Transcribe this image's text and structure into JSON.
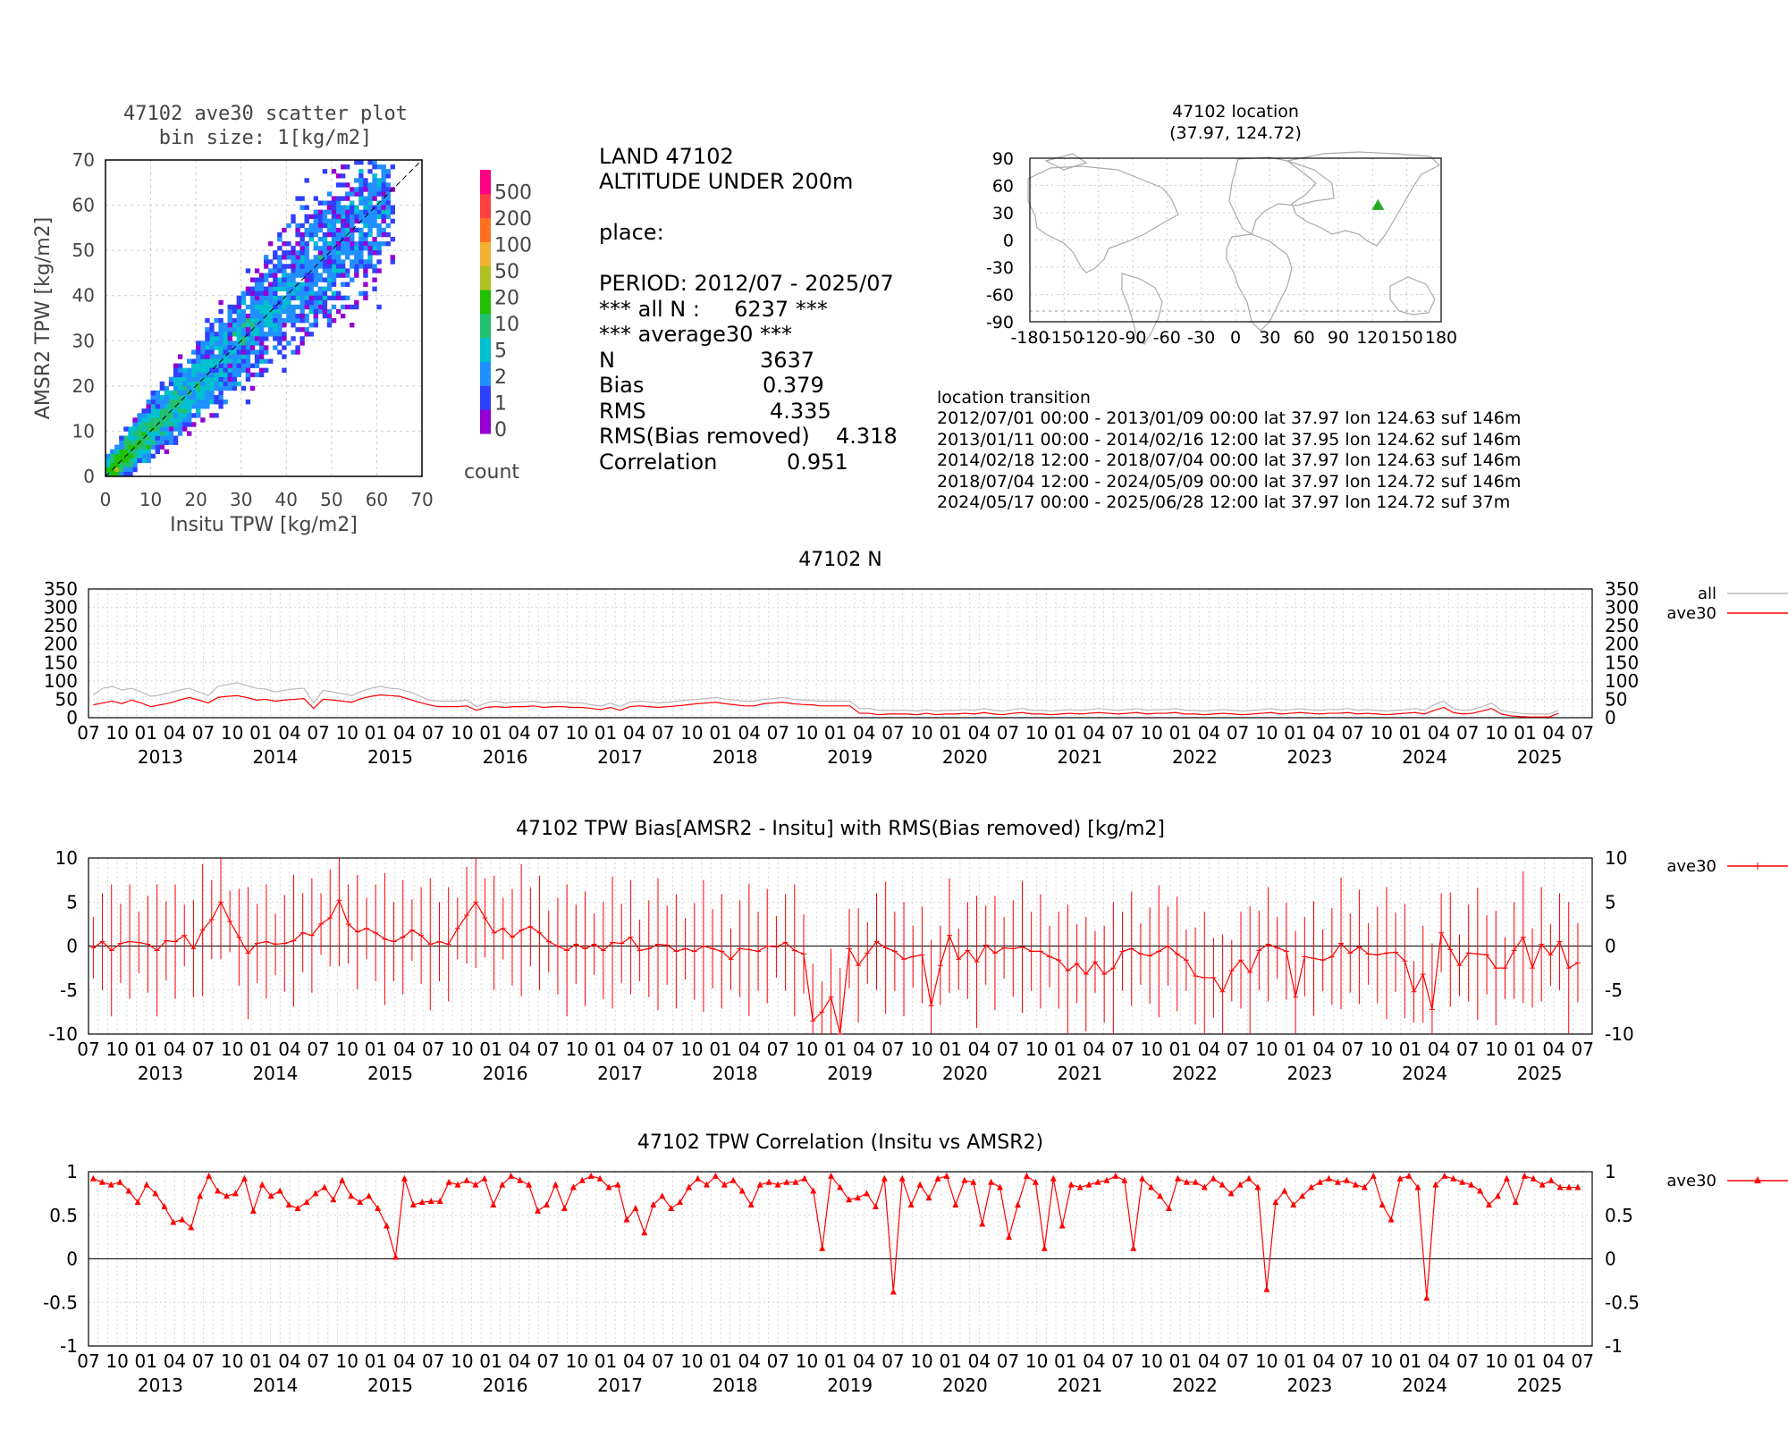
{
  "scatter": {
    "title_line1": "47102 ave30 scatter plot",
    "title_line2": "bin size: 1[kg/m2]",
    "xlabel": "Insitu TPW [kg/m2]",
    "ylabel": "AMSR2 TPW [kg/m2]",
    "ticks": [
      "0",
      "10",
      "20",
      "30",
      "40",
      "50",
      "60",
      "70"
    ],
    "colorbar_label": "count",
    "colorbar_levels": [
      "0",
      "1",
      "2",
      "5",
      "10",
      "20",
      "50",
      "100",
      "200",
      "500"
    ],
    "colorbar_colors": [
      "#9400d3",
      "#3040ff",
      "#2090ff",
      "#00c0d0",
      "#20c070",
      "#20c000",
      "#b0c020",
      "#f0b030",
      "#ff7020",
      "#ff4040",
      "#ff0080"
    ]
  },
  "stats": {
    "line1": "LAND 47102",
    "line2": "ALTITUDE UNDER 200m",
    "place_label": "place:",
    "period": "PERIOD: 2012/07 - 2025/07",
    "all_n": "*** all N :     6237 ***",
    "avg_header": "*** average30 ***",
    "rows": [
      {
        "label": "N",
        "value": "3637"
      },
      {
        "label": "Bias",
        "value": "0.379"
      },
      {
        "label": "RMS",
        "value": "4.335"
      },
      {
        "label": "RMS(Bias removed)",
        "value": "4.318"
      },
      {
        "label": "Correlation",
        "value": "0.951"
      }
    ]
  },
  "location": {
    "title_line1": "47102 location",
    "title_line2": "(37.97, 124.72)",
    "lat": 37.97,
    "lon": 124.72,
    "marker_color": "#22aa22",
    "yticks": [
      "90",
      "60",
      "30",
      "0",
      "-30",
      "-60",
      "-90"
    ],
    "xticks": [
      "-180",
      "-150",
      "-120",
      "-90",
      "-60",
      "-30",
      "0",
      "30",
      "60",
      "90",
      "120",
      "150",
      "180"
    ],
    "transition_title": "location transition",
    "transitions": [
      "2012/07/01 00:00 - 2013/01/09 00:00 lat 37.97 lon 124.63 suf 146m",
      "2013/01/11 00:00 - 2014/02/16 12:00 lat 37.95 lon 124.62 suf 146m",
      "2014/02/18 12:00 - 2018/07/04 00:00 lat 37.97 lon 124.63 suf 146m",
      "2018/07/04 12:00 - 2024/05/09 00:00 lat 37.97 lon 124.72 suf 146m",
      "2024/05/17 00:00 - 2025/06/28 12:00 lat 37.97 lon 124.72 suf 37m"
    ]
  },
  "time_axis": {
    "month_ticks": [
      "07",
      "10",
      "01",
      "04",
      "07",
      "10",
      "01",
      "04",
      "07",
      "10",
      "01",
      "04",
      "07",
      "10",
      "01",
      "04",
      "07",
      "10",
      "01",
      "04",
      "07",
      "10",
      "01",
      "04",
      "07",
      "10",
      "01",
      "04",
      "07",
      "10",
      "01",
      "04",
      "07",
      "10",
      "01",
      "04",
      "07",
      "10",
      "01",
      "04",
      "07",
      "10",
      "01",
      "04",
      "07",
      "10",
      "01",
      "04",
      "07",
      "10",
      "01",
      "04",
      "07"
    ],
    "years": [
      "2013",
      "2014",
      "2015",
      "2016",
      "2017",
      "2018",
      "2019",
      "2020",
      "2021",
      "2022",
      "2023",
      "2024",
      "2025"
    ]
  },
  "chart_data": [
    {
      "type": "scatter",
      "title": "47102 ave30 scatter plot",
      "xlabel": "Insitu TPW [kg/m2]",
      "ylabel": "AMSR2 TPW [kg/m2]",
      "xlim": [
        0,
        70
      ],
      "ylim": [
        0,
        70
      ],
      "n": 3637,
      "bias": 0.379,
      "rms": 4.335,
      "correlation": 0.951
    },
    {
      "type": "line",
      "title": "47102 N",
      "ylim": [
        0,
        350
      ],
      "yticks": [
        "350",
        "300",
        "250",
        "200",
        "150",
        "100",
        "50",
        "0"
      ],
      "series": [
        {
          "name": "all",
          "color": "#bbbbbb",
          "values": [
            62,
            80,
            85,
            75,
            80,
            70,
            58,
            62,
            68,
            75,
            80,
            70,
            60,
            85,
            90,
            95,
            88,
            80,
            78,
            70,
            75,
            78,
            80,
            40,
            75,
            70,
            65,
            60,
            72,
            80,
            85,
            80,
            78,
            70,
            60,
            48,
            45,
            45,
            45,
            48,
            30,
            40,
            45,
            40,
            42,
            43,
            45,
            40,
            42,
            43,
            40,
            40,
            35,
            32,
            40,
            30,
            42,
            45,
            43,
            40,
            42,
            45,
            48,
            50,
            52,
            55,
            50,
            48,
            45,
            45,
            50,
            52,
            55,
            50,
            48,
            47,
            45,
            45,
            45,
            45,
            25,
            25,
            20,
            20,
            20,
            20,
            18,
            22,
            18,
            20,
            20,
            22,
            20,
            25,
            20,
            18,
            22,
            25,
            20,
            20,
            18,
            20,
            22,
            20,
            22,
            25,
            22,
            20,
            22,
            25,
            20,
            22,
            22,
            25,
            20,
            20,
            18,
            20,
            22,
            20,
            18,
            20,
            22,
            25,
            20,
            22,
            24,
            22,
            20,
            22,
            22,
            25,
            20,
            22,
            20,
            18,
            20,
            22,
            25,
            20,
            35,
            45,
            25,
            20,
            22,
            30,
            40,
            20,
            15,
            12,
            10,
            10,
            10,
            20
          ]
        },
        {
          "name": "ave30",
          "color": "#ff0000",
          "values": [
            35,
            40,
            45,
            38,
            48,
            40,
            30,
            35,
            40,
            48,
            55,
            48,
            40,
            55,
            58,
            60,
            55,
            48,
            50,
            45,
            48,
            50,
            52,
            25,
            50,
            48,
            45,
            42,
            52,
            58,
            62,
            60,
            58,
            50,
            42,
            35,
            30,
            30,
            30,
            32,
            20,
            28,
            30,
            28,
            30,
            30,
            32,
            28,
            30,
            30,
            28,
            28,
            25,
            22,
            28,
            20,
            30,
            32,
            30,
            28,
            30,
            32,
            35,
            38,
            40,
            42,
            38,
            35,
            32,
            32,
            38,
            40,
            42,
            38,
            36,
            35,
            32,
            32,
            32,
            32,
            12,
            12,
            8,
            10,
            10,
            10,
            8,
            12,
            8,
            10,
            10,
            12,
            10,
            14,
            10,
            8,
            12,
            14,
            10,
            10,
            8,
            10,
            12,
            10,
            12,
            14,
            12,
            10,
            12,
            14,
            10,
            12,
            12,
            14,
            10,
            10,
            8,
            10,
            12,
            10,
            8,
            10,
            12,
            14,
            10,
            12,
            14,
            12,
            10,
            12,
            12,
            14,
            10,
            12,
            10,
            8,
            10,
            12,
            14,
            10,
            20,
            28,
            14,
            10,
            12,
            18,
            25,
            10,
            5,
            3,
            2,
            2,
            2,
            12
          ]
        }
      ],
      "legend": "right"
    },
    {
      "type": "line",
      "title": "47102 TPW Bias[AMSR2 - Insitu] with RMS(Bias removed) [kg/m2]",
      "ylim": [
        -10,
        10
      ],
      "yticks": [
        "10",
        "5",
        "0",
        "-5",
        "-10"
      ],
      "series": [
        {
          "name": "ave30",
          "color": "#ff0000",
          "values": [
            -0.2,
            0.5,
            -0.5,
            0.3,
            0.5,
            0.4,
            0.2,
            -0.5,
            0.6,
            0.5,
            1.2,
            -0.3,
            1.8,
            3.0,
            5.0,
            2.8,
            1.0,
            -0.8,
            0.3,
            0.5,
            0.2,
            0.3,
            0.6,
            1.5,
            1.2,
            2.5,
            3.2,
            5.2,
            2.5,
            1.6,
            2.0,
            1.5,
            0.8,
            0.5,
            1.0,
            1.8,
            1.2,
            0.2,
            0.5,
            0.2,
            2.0,
            3.5,
            5.0,
            3.2,
            1.5,
            2.0,
            1.0,
            1.8,
            2.2,
            1.5,
            0.5,
            0.0,
            -0.5,
            0.2,
            -0.3,
            0.2,
            -0.5,
            0.4,
            0.3,
            1.0,
            -0.5,
            -0.3,
            0.2,
            0.1,
            -0.6,
            -0.3,
            -0.6,
            0.0,
            -0.3,
            -0.6,
            -1.5,
            -0.3,
            -0.4,
            -0.6,
            0.0,
            -0.1,
            0.4,
            -0.5,
            -0.9,
            -8.5,
            -7.5,
            -5.8,
            -10.0,
            -0.3,
            -2.2,
            -0.8,
            0.5,
            -0.2,
            -0.6,
            -1.5,
            -1.2,
            -1.0,
            -6.8,
            -2.2,
            1.2,
            -1.5,
            -0.5,
            -1.8,
            0.1,
            -0.8,
            -0.2,
            -0.3,
            -0.1,
            -0.6,
            -0.6,
            -1.2,
            -1.6,
            -2.8,
            -2.0,
            -3.2,
            -1.8,
            -3.2,
            -2.5,
            -0.6,
            -0.3,
            -0.9,
            -1.1,
            -0.6,
            0.0,
            -0.9,
            -1.6,
            -3.4,
            -3.6,
            -3.6,
            -5.2,
            -2.8,
            -1.6,
            -3.0,
            -0.5,
            0.2,
            -0.2,
            -0.6,
            -5.8,
            -1.2,
            -1.4,
            -1.6,
            -1.2,
            0.3,
            -0.8,
            -0.1,
            -0.9,
            -1.0,
            -0.8,
            -0.7,
            -1.7,
            -5.2,
            -3.2,
            -7.2,
            1.5,
            -0.4,
            -2.2,
            -0.8,
            -0.9,
            -1.0,
            -2.5,
            -2.5,
            -0.5,
            1.0,
            -2.5,
            0.2,
            -1.0,
            0.5,
            -2.5,
            -1.9
          ]
        }
      ],
      "legend": "right"
    },
    {
      "type": "line",
      "title": "47102 TPW Correlation (Insitu vs AMSR2)",
      "ylim": [
        -1,
        1
      ],
      "yticks": [
        "1",
        "0.5",
        "0",
        "-0.5",
        "-1"
      ],
      "series": [
        {
          "name": "ave30",
          "color": "#ff0000",
          "values": [
            0.92,
            0.88,
            0.85,
            0.88,
            0.78,
            0.65,
            0.85,
            0.75,
            0.6,
            0.42,
            0.45,
            0.36,
            0.72,
            0.95,
            0.78,
            0.72,
            0.75,
            0.92,
            0.55,
            0.85,
            0.72,
            0.78,
            0.62,
            0.58,
            0.65,
            0.75,
            0.82,
            0.68,
            0.9,
            0.72,
            0.65,
            0.72,
            0.58,
            0.38,
            0.02,
            0.92,
            0.62,
            0.65,
            0.66,
            0.66,
            0.88,
            0.85,
            0.9,
            0.85,
            0.92,
            0.62,
            0.85,
            0.95,
            0.9,
            0.85,
            0.55,
            0.62,
            0.85,
            0.58,
            0.82,
            0.9,
            0.95,
            0.92,
            0.82,
            0.85,
            0.45,
            0.58,
            0.3,
            0.62,
            0.72,
            0.58,
            0.65,
            0.82,
            0.92,
            0.85,
            0.95,
            0.85,
            0.9,
            0.78,
            0.62,
            0.85,
            0.88,
            0.85,
            0.88,
            0.88,
            0.92,
            0.78,
            0.12,
            0.95,
            0.82,
            0.68,
            0.7,
            0.75,
            0.6,
            0.92,
            -0.38,
            0.92,
            0.62,
            0.85,
            0.7,
            0.92,
            0.95,
            0.62,
            0.9,
            0.88,
            0.4,
            0.88,
            0.82,
            0.25,
            0.62,
            0.95,
            0.88,
            0.12,
            0.92,
            0.38,
            0.85,
            0.82,
            0.85,
            0.88,
            0.9,
            0.95,
            0.9,
            0.12,
            0.92,
            0.82,
            0.72,
            0.58,
            0.92,
            0.88,
            0.88,
            0.82,
            0.92,
            0.85,
            0.75,
            0.85,
            0.92,
            0.82,
            -0.35,
            0.65,
            0.78,
            0.62,
            0.72,
            0.82,
            0.88,
            0.92,
            0.88,
            0.9,
            0.85,
            0.82,
            0.95,
            0.62,
            0.45,
            0.92,
            0.95,
            0.82,
            -0.45,
            0.85,
            0.95,
            0.92,
            0.88,
            0.85,
            0.78,
            0.62,
            0.72,
            0.92,
            0.65,
            0.95,
            0.92,
            0.85,
            0.9,
            0.82,
            0.82,
            0.82
          ]
        }
      ],
      "legend": "right"
    }
  ],
  "ts_titles": {
    "n": "47102 N",
    "bias": "47102 TPW Bias[AMSR2 - Insitu] with RMS(Bias removed) [kg/m2]",
    "corr": "47102 TPW Correlation (Insitu vs AMSR2)"
  },
  "legend_labels": {
    "all": "all",
    "ave30": "ave30"
  }
}
